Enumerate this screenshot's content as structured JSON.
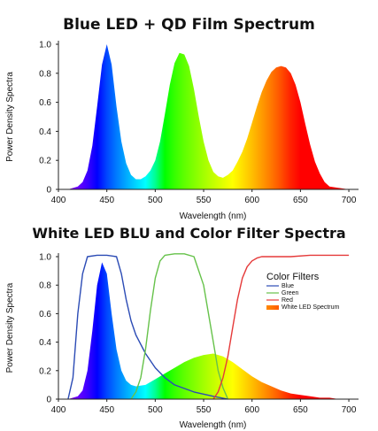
{
  "chart_data": [
    {
      "type": "area",
      "title": "Blue LED + QD Film Spectrum",
      "xlabel": "Wavelength (nm)",
      "ylabel": "Power Density Spectra",
      "xlim": [
        400,
        710
      ],
      "ylim": [
        0,
        1.0
      ],
      "xticks": [
        400,
        450,
        500,
        550,
        600,
        650,
        700
      ],
      "yticks": [
        0,
        0.2,
        0.4,
        0.6,
        0.8,
        1.0
      ],
      "ytick_labels": [
        "0",
        "0.2",
        "0.4",
        "0.6",
        "0.8",
        "1.0"
      ],
      "fill": "wavelength-rainbow",
      "grid": false,
      "series": [
        {
          "x": [
            400,
            410,
            420,
            425,
            430,
            435,
            440,
            445,
            450,
            455,
            460,
            465,
            470,
            475,
            480,
            485,
            490,
            495,
            500,
            505,
            510,
            515,
            520,
            525,
            530,
            535,
            540,
            545,
            550,
            555,
            560,
            565,
            570,
            575,
            580,
            585,
            590,
            595,
            600,
            605,
            610,
            615,
            620,
            625,
            630,
            635,
            640,
            645,
            650,
            655,
            660,
            665,
            670,
            675,
            680,
            690,
            700,
            710
          ],
          "values": [
            0.0,
            0.0,
            0.02,
            0.05,
            0.13,
            0.3,
            0.57,
            0.86,
            1.0,
            0.86,
            0.57,
            0.33,
            0.18,
            0.1,
            0.07,
            0.07,
            0.09,
            0.13,
            0.2,
            0.33,
            0.52,
            0.72,
            0.87,
            0.94,
            0.93,
            0.85,
            0.69,
            0.5,
            0.33,
            0.2,
            0.12,
            0.09,
            0.08,
            0.1,
            0.13,
            0.19,
            0.26,
            0.35,
            0.46,
            0.57,
            0.67,
            0.75,
            0.81,
            0.84,
            0.85,
            0.84,
            0.8,
            0.72,
            0.6,
            0.45,
            0.31,
            0.19,
            0.11,
            0.05,
            0.02,
            0.01,
            0.0,
            0.0
          ]
        }
      ]
    },
    {
      "type": "line",
      "title": "White LED BLU and Color Filter Spectra",
      "xlabel": "Wavelength (nm)",
      "ylabel": "Power Density Spectra",
      "xlim": [
        400,
        710
      ],
      "ylim": [
        0,
        1.0
      ],
      "xticks": [
        400,
        450,
        500,
        550,
        600,
        650,
        700
      ],
      "yticks": [
        0,
        0.2,
        0.4,
        0.6,
        0.8,
        1.0
      ],
      "ytick_labels": [
        "0",
        "0.2",
        "0.4",
        "0.6",
        "0.8",
        "1.0"
      ],
      "grid": false,
      "legend": {
        "title": "Color Filters",
        "placement": "right",
        "items": [
          "Blue",
          "Green",
          "Red",
          "White LED Spectrum"
        ]
      },
      "series": [
        {
          "name": "White LED Spectrum",
          "kind": "filled-area",
          "fill": "wavelength-rainbow",
          "x": [
            400,
            410,
            420,
            425,
            430,
            435,
            440,
            445,
            450,
            455,
            460,
            465,
            470,
            475,
            480,
            490,
            500,
            510,
            520,
            530,
            540,
            550,
            560,
            570,
            580,
            590,
            600,
            610,
            620,
            630,
            640,
            650,
            660,
            670,
            680,
            690,
            700,
            710
          ],
          "values": [
            0.0,
            0.0,
            0.02,
            0.06,
            0.2,
            0.48,
            0.8,
            0.96,
            0.88,
            0.6,
            0.35,
            0.2,
            0.13,
            0.1,
            0.09,
            0.1,
            0.14,
            0.18,
            0.22,
            0.26,
            0.29,
            0.31,
            0.32,
            0.3,
            0.26,
            0.21,
            0.16,
            0.12,
            0.09,
            0.06,
            0.04,
            0.03,
            0.02,
            0.01,
            0.01,
            0.0,
            0.0,
            0.0
          ]
        },
        {
          "name": "Blue",
          "color": "#2b4bb5",
          "x": [
            410,
            415,
            420,
            425,
            430,
            440,
            450,
            460,
            465,
            470,
            475,
            480,
            490,
            500,
            510,
            520,
            540,
            560,
            575
          ],
          "values": [
            0.0,
            0.15,
            0.6,
            0.88,
            1.0,
            1.01,
            1.01,
            1.0,
            0.88,
            0.7,
            0.55,
            0.45,
            0.32,
            0.22,
            0.15,
            0.1,
            0.05,
            0.02,
            0.0
          ]
        },
        {
          "name": "Green",
          "color": "#66c24a",
          "x": [
            475,
            480,
            485,
            490,
            495,
            500,
            505,
            510,
            520,
            530,
            540,
            550,
            555,
            560,
            565,
            570,
            575
          ],
          "values": [
            0.0,
            0.05,
            0.15,
            0.35,
            0.62,
            0.85,
            0.97,
            1.01,
            1.02,
            1.02,
            1.0,
            0.8,
            0.6,
            0.4,
            0.2,
            0.08,
            0.0
          ]
        },
        {
          "name": "Red",
          "color": "#e53a3a",
          "x": [
            560,
            565,
            570,
            575,
            580,
            585,
            590,
            595,
            600,
            605,
            610,
            620,
            640,
            660,
            680,
            700
          ],
          "values": [
            0.0,
            0.05,
            0.15,
            0.3,
            0.5,
            0.7,
            0.85,
            0.93,
            0.97,
            0.99,
            1.0,
            1.0,
            1.0,
            1.01,
            1.01,
            1.01
          ]
        }
      ]
    }
  ]
}
